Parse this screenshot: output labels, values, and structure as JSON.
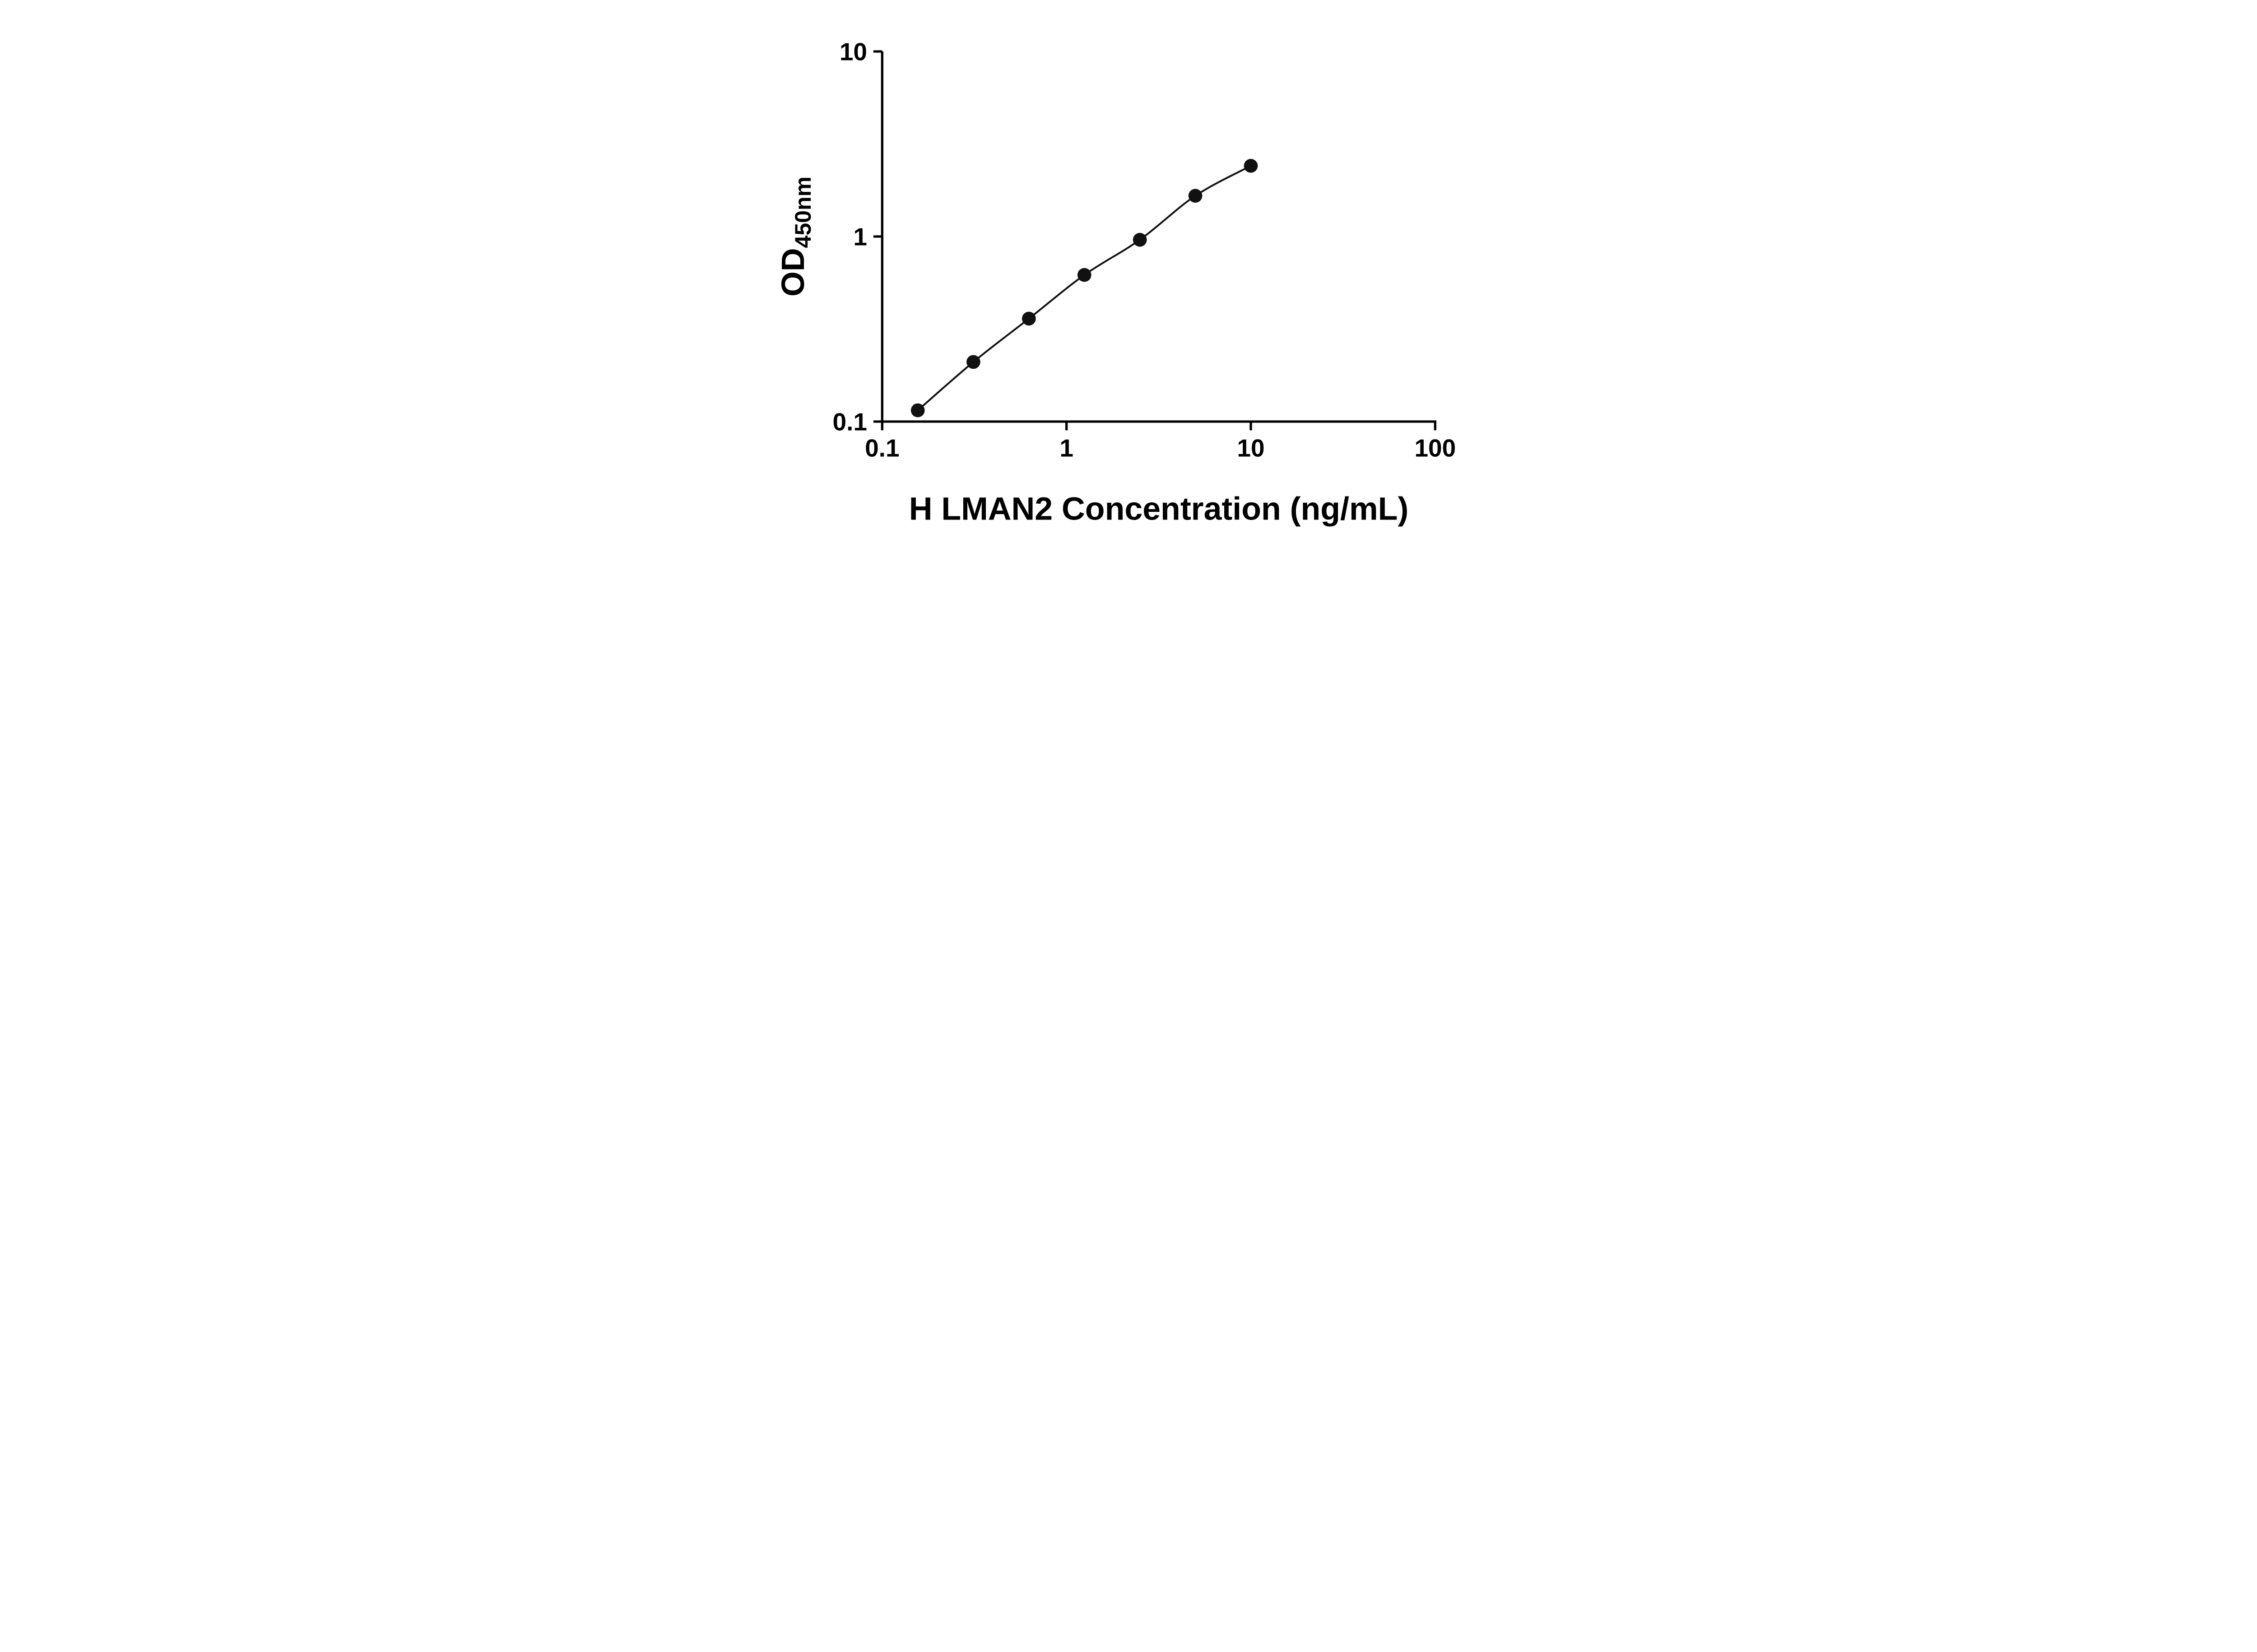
{
  "page": {
    "background": "#ffffff"
  },
  "chart_data": {
    "type": "scatter",
    "title": "",
    "xlabel": "H LMAN2 Concentration (ng/mL)",
    "ylabel": "OD",
    "ylabel_subscript": "450nm",
    "x_scale": "log",
    "y_scale": "log",
    "xlim": [
      0.1,
      100
    ],
    "ylim": [
      0.1,
      10
    ],
    "x": [
      0.156,
      0.3125,
      0.625,
      1.25,
      2.5,
      5,
      10
    ],
    "y": [
      0.115,
      0.21,
      0.36,
      0.62,
      0.96,
      1.66,
      2.41
    ],
    "x_ticks": [
      {
        "value": 0.1,
        "label": "0.1"
      },
      {
        "value": 1,
        "label": "1"
      },
      {
        "value": 10,
        "label": "10"
      },
      {
        "value": 100,
        "label": "100"
      }
    ],
    "y_ticks": [
      {
        "value": 0.1,
        "label": "0.1"
      },
      {
        "value": 1,
        "label": "1"
      },
      {
        "value": 10,
        "label": "10"
      }
    ],
    "grid": false,
    "legend": "none",
    "curve": "smooth",
    "axis_color": "#000000",
    "line_color": "#111111",
    "marker_color": "#111111"
  }
}
